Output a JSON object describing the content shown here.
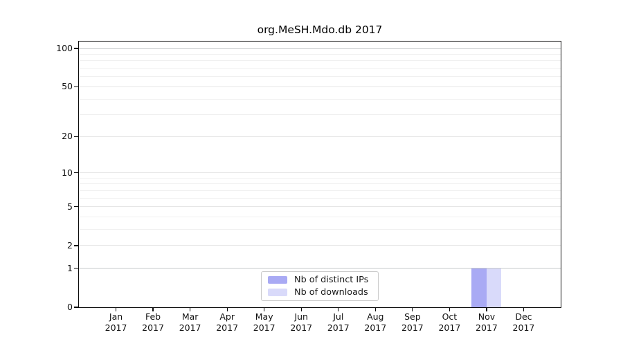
{
  "title": "org.MeSH.Mdo.db 2017",
  "chart_data": {
    "type": "bar",
    "title": "org.MeSH.Mdo.db 2017",
    "categories": [
      "Jan 2017",
      "Feb 2017",
      "Mar 2017",
      "Apr 2017",
      "May 2017",
      "Jun 2017",
      "Jul 2017",
      "Aug 2017",
      "Sep 2017",
      "Oct 2017",
      "Nov 2017",
      "Dec 2017"
    ],
    "series": [
      {
        "name": "Nb of distinct IPs",
        "color": "#a9aaf4",
        "values": [
          0,
          0,
          0,
          0,
          0,
          0,
          0,
          0,
          0,
          0,
          1,
          0
        ]
      },
      {
        "name": "Nb of downloads",
        "color": "#d9dafa",
        "values": [
          0,
          0,
          0,
          0,
          0,
          0,
          0,
          0,
          0,
          0,
          1,
          0
        ]
      }
    ],
    "xlabel": "",
    "ylabel": "",
    "y_scale": "log1p",
    "y_ticks": [
      0,
      1,
      2,
      5,
      10,
      20,
      50,
      100
    ],
    "y_minor_ticks": [
      3,
      4,
      6,
      7,
      8,
      9,
      30,
      40,
      60,
      70,
      80,
      90
    ],
    "emphasized_gridlines": [
      1,
      100
    ],
    "ylim": [
      0,
      115
    ],
    "grid": "on",
    "legend_position": "lower center"
  },
  "legend": {
    "items": [
      "Nb of distinct IPs",
      "Nb of downloads"
    ]
  },
  "colors": {
    "bar_distinct_ips": "#a9aaf4",
    "bar_downloads": "#d9dafa",
    "grid_strong": "#c5c8ca",
    "grid_major": "#e6e6e6",
    "grid_minor": "#f0f0f0",
    "axis": "#0a0a0a",
    "text": "#1a1a1a",
    "legend_border": "#c9c9c9",
    "background": "#ffffff"
  }
}
